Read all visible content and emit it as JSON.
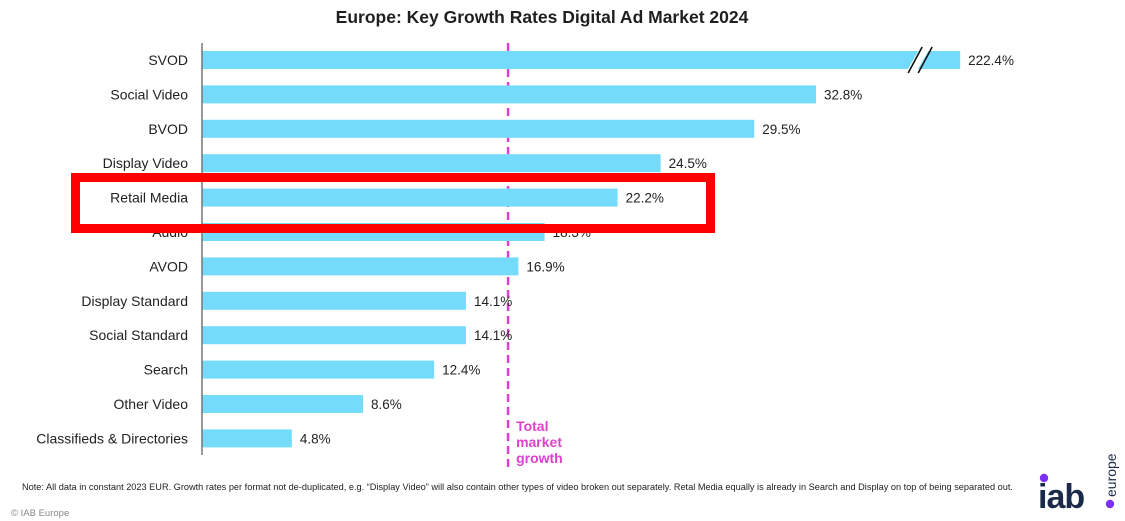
{
  "chart_data": {
    "type": "bar",
    "orientation": "horizontal",
    "title": "Europe: Key Growth Rates Digital Ad Market 2024",
    "xlabel": "",
    "ylabel": "",
    "categories": [
      "SVOD",
      "Social Video",
      "BVOD",
      "Display Video",
      "Retail Media",
      "Audio",
      "AVOD",
      "Display Standard",
      "Social Standard",
      "Search",
      "Other Video",
      "Classifieds & Directories"
    ],
    "values": [
      222.4,
      32.8,
      29.5,
      24.5,
      22.2,
      18.3,
      16.9,
      14.1,
      14.1,
      12.4,
      8.6,
      4.8
    ],
    "value_labels": [
      "222.4%",
      "32.8%",
      "29.5%",
      "24.5%",
      "22.2%",
      "18.3%",
      "16.9%",
      "14.1%",
      "14.1%",
      "12.4%",
      "8.6%",
      "4.8%"
    ],
    "xlim": [
      0,
      40
    ],
    "axis_break": {
      "category": "SVOD",
      "shown_as_value": 40.5
    },
    "bar_color": "#74dcfa",
    "reference_line": {
      "label_lines": [
        "Total",
        "market",
        "growth"
      ],
      "value": 16.35,
      "color": "#e040d0",
      "style": "dashed"
    },
    "highlighted_category": "Retail Media",
    "highlight_color": "#ff0000",
    "grid": false,
    "legend": "none"
  },
  "footer": {
    "note": "Note: All data in constant 2023 EUR. Growth rates per format not de-duplicated, e.g. “Display Video” will also contain other types of video broken out separately. Retal Media equally is already in Search and Display on top of being separated out.",
    "copyright": "© IAB Europe"
  },
  "logo": {
    "main": "iab",
    "sub": "europe",
    "dot_color": "#7b2ff7",
    "text_color": "#1c2a4a"
  }
}
